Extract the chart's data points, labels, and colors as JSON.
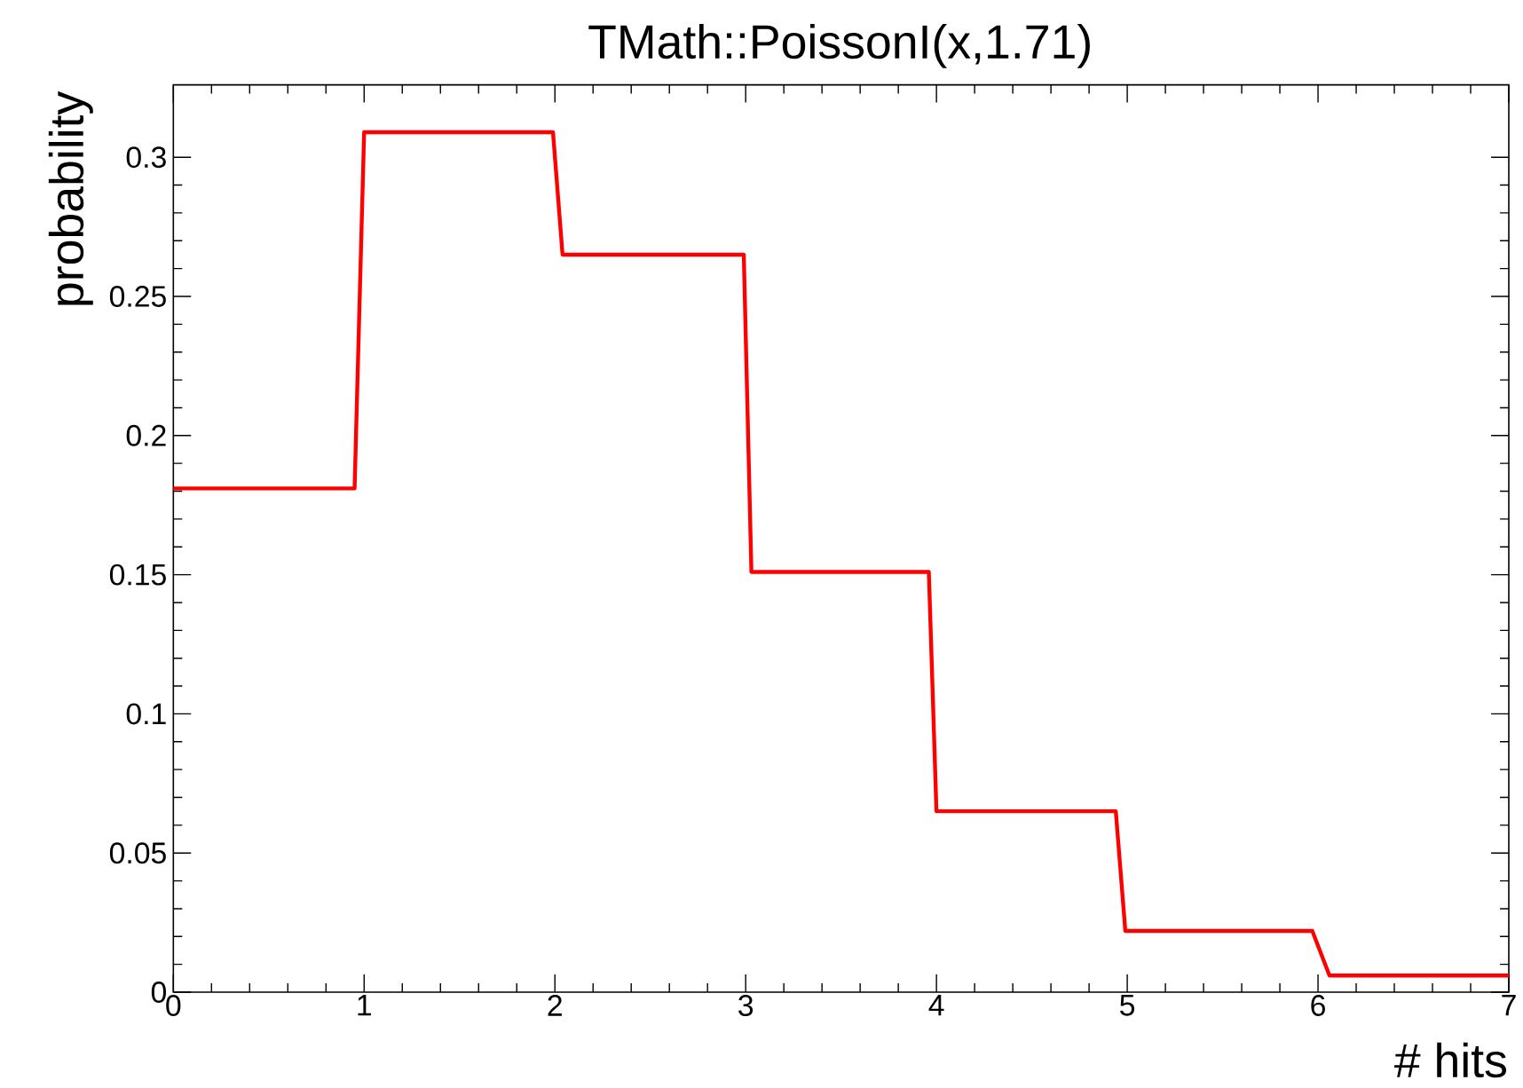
{
  "chart_data": {
    "type": "line",
    "title": "TMath::PoissonI(x,1.71)",
    "xlabel": "# hits",
    "ylabel": "probability",
    "xlim": [
      0,
      7
    ],
    "xticks": [
      0,
      1,
      2,
      3,
      4,
      5,
      6,
      7
    ],
    "ylim": [
      0,
      0.326
    ],
    "yticks": [
      0,
      0.05,
      0.1,
      0.15,
      0.2,
      0.25,
      0.3
    ],
    "grid": false,
    "marker": "none",
    "line_style": "solid",
    "series": [
      {
        "color": "#ff0000",
        "x": [
          0,
          0.95,
          1.0,
          1.99,
          2.04,
          2.99,
          3.03,
          3.96,
          4.0,
          4.94,
          4.99,
          5.97,
          6.06,
          7
        ],
        "values": [
          0.181,
          0.181,
          0.309,
          0.309,
          0.265,
          0.265,
          0.151,
          0.151,
          0.065,
          0.065,
          0.022,
          0.022,
          0.006,
          0.006
        ]
      }
    ]
  }
}
